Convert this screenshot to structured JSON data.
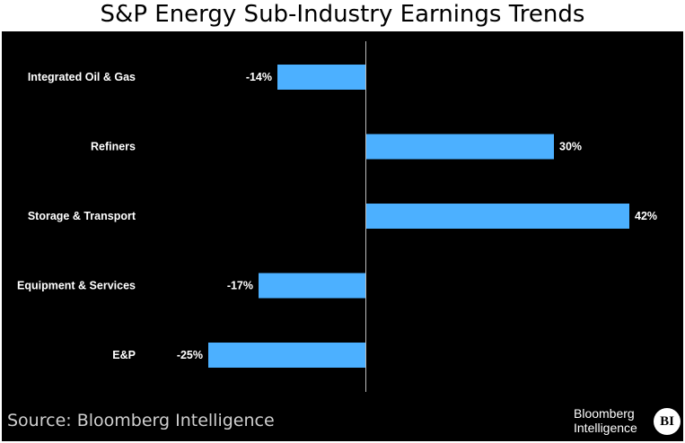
{
  "title": "S&P Energy Sub-Industry Earnings Trends",
  "source": "Source: Bloomberg Intelligence",
  "logo": {
    "line1": "Bloomberg",
    "line2": "Intelligence",
    "badge": "BI"
  },
  "colors": {
    "bar": "#4cb0ff",
    "background": "#000000",
    "text": "#ffffff",
    "axis": "#bbbbbb"
  },
  "chart_data": {
    "type": "bar",
    "orientation": "horizontal",
    "title": "S&P Energy Sub-Industry Earnings Trends",
    "categories": [
      "Integrated Oil & Gas",
      "Refiners",
      "Storage & Transport",
      "Equipment & Services",
      "E&P"
    ],
    "values": [
      -14,
      30,
      42,
      -17,
      -25
    ],
    "value_labels": [
      "-14%",
      "30%",
      "42%",
      "-17%",
      "-25%"
    ],
    "unit": "%",
    "xlim": [
      -25,
      42
    ],
    "grid": false,
    "legend": "none"
  }
}
